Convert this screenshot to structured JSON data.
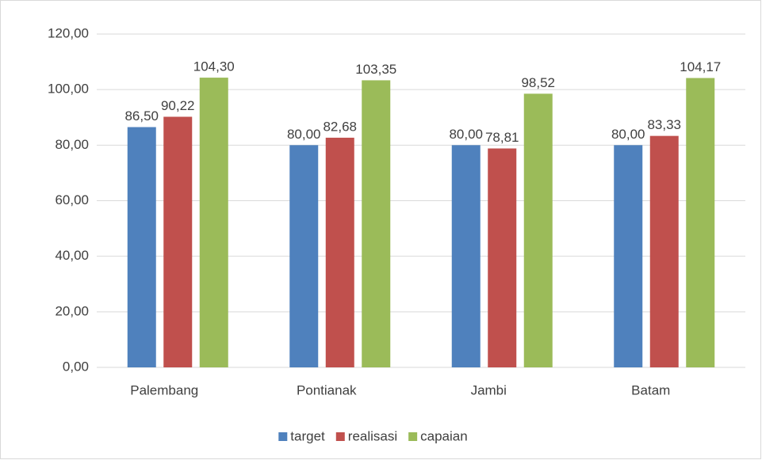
{
  "chart_data": {
    "type": "bar",
    "categories": [
      "Palembang",
      "Pontianak",
      "Jambi",
      "Batam"
    ],
    "series": [
      {
        "name": "target",
        "color": "#4f81bd",
        "values": [
          86.5,
          80,
          80,
          80
        ],
        "value_labels": [
          "86,50",
          "80,00",
          "80,00",
          "80,00"
        ]
      },
      {
        "name": "realisasi",
        "color": "#c0504d",
        "values": [
          90.22,
          82.68,
          78.81,
          83.33
        ],
        "value_labels": [
          "90,22",
          "82,68",
          "78,81",
          "83,33"
        ]
      },
      {
        "name": "capaian",
        "color": "#9bbb59",
        "values": [
          104.3,
          103.35,
          98.52,
          104.17
        ],
        "value_labels": [
          "104,30",
          "103,35",
          "98,52",
          "104,17"
        ]
      }
    ],
    "ylim": [
      0,
      120
    ],
    "yticks": [
      {
        "value": 0,
        "label": "0,00"
      },
      {
        "value": 20,
        "label": "20,00"
      },
      {
        "value": 40,
        "label": "40,00"
      },
      {
        "value": 60,
        "label": "60,00"
      },
      {
        "value": 80,
        "label": "80,00"
      },
      {
        "value": 100,
        "label": "100,00"
      },
      {
        "value": 120,
        "label": "120,00"
      }
    ],
    "grid": true,
    "legend": "bottom"
  }
}
